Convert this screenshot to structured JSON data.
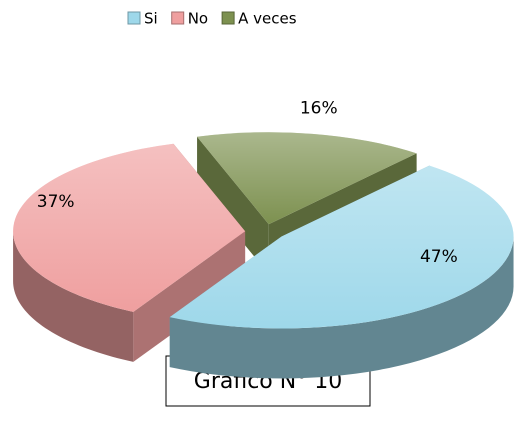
{
  "chart_data": {
    "type": "pie",
    "categories": [
      "Si",
      "No",
      "A veces"
    ],
    "values": [
      47,
      37,
      16
    ],
    "value_labels": [
      "47%",
      "37%",
      "16%"
    ],
    "colors": [
      "#9ed8ea",
      "#ef9f9f",
      "#7d9150"
    ],
    "legend": "top",
    "caption": "Gráfico N° 10"
  }
}
